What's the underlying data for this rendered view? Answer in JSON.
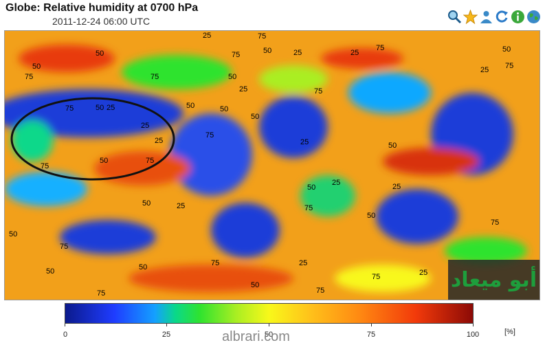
{
  "header": {
    "title": "Globe: Relative humidity at 0700 hPa",
    "subtitle": "2011-12-24 06:00 UTC"
  },
  "toolbar": {
    "icons": [
      "search-icon",
      "star-icon",
      "user-icon",
      "refresh-icon",
      "info-icon",
      "globe-icon"
    ]
  },
  "map": {
    "contour_labels": [
      {
        "text": "75"
      },
      {
        "text": "25"
      },
      {
        "text": "50"
      },
      {
        "text": "75"
      },
      {
        "text": "25"
      },
      {
        "text": "50"
      },
      {
        "text": "75"
      },
      {
        "text": "25"
      },
      {
        "text": "50"
      },
      {
        "text": "75"
      },
      {
        "text": "50"
      },
      {
        "text": "75"
      },
      {
        "text": "25"
      },
      {
        "text": "25"
      },
      {
        "text": "50"
      },
      {
        "text": "75"
      },
      {
        "text": "50"
      },
      {
        "text": "25"
      },
      {
        "text": "75"
      },
      {
        "text": "50"
      },
      {
        "text": "25"
      },
      {
        "text": "50"
      },
      {
        "text": "75"
      },
      {
        "text": "50"
      },
      {
        "text": "25"
      },
      {
        "text": "75"
      },
      {
        "text": "50"
      },
      {
        "text": "75"
      },
      {
        "text": "25"
      },
      {
        "text": "50"
      },
      {
        "text": "75"
      },
      {
        "text": "50"
      },
      {
        "text": "25"
      },
      {
        "text": "75"
      },
      {
        "text": "50"
      },
      {
        "text": "75"
      },
      {
        "text": "25"
      },
      {
        "text": "50"
      },
      {
        "text": "75"
      },
      {
        "text": "50"
      },
      {
        "text": "25"
      },
      {
        "text": "75"
      },
      {
        "text": "50"
      },
      {
        "text": "75"
      },
      {
        "text": "25"
      },
      {
        "text": "50"
      },
      {
        "text": "75"
      },
      {
        "text": "50"
      },
      {
        "text": "25"
      },
      {
        "text": "75"
      }
    ],
    "watermark_text": "أبو ميعاد",
    "colors": {
      "low": "#0b1a8c",
      "mid": "#f8f81a",
      "high": "#8c0a06"
    }
  },
  "colorbar": {
    "ticks": [
      "0",
      "25",
      "50",
      "75",
      "100"
    ],
    "unit": "[%]"
  },
  "site": "albrari.com"
}
